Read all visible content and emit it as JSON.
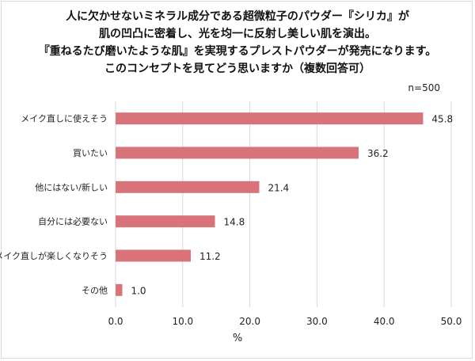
{
  "title_lines": [
    "人に欠かせないミネラル成分である超微粒子のパウダー『シリカ』が",
    "肌の凹凸に密着し、光を均一に反射し美しい肌を演出。",
    "『重ねるたび磨いたような肌』を実現するプレストパウダーが発売になります。",
    "このコンセプトを見てどう思いますか（複数回答可）"
  ],
  "sample_size_label": "n=500",
  "chart_data": {
    "type": "bar",
    "orientation": "horizontal",
    "categories": [
      "メイク直しに使えそう",
      "買いたい",
      "他にはない/新しい",
      "自分には必要ない",
      "メイク直しが楽しくなりそう",
      "その他"
    ],
    "values": [
      45.8,
      36.2,
      21.4,
      14.8,
      11.2,
      1.0
    ],
    "value_labels": [
      "45.8",
      "36.2",
      "21.4",
      "14.8",
      "11.2",
      "1.0"
    ],
    "xlim": [
      0,
      50
    ],
    "xticks": [
      "0.0",
      "10.0",
      "20.0",
      "30.0",
      "40.0",
      "50.0"
    ],
    "xlabel": "%",
    "grid": true,
    "bar_color": "#d8737a",
    "grid_color": "#d9d9d9"
  }
}
